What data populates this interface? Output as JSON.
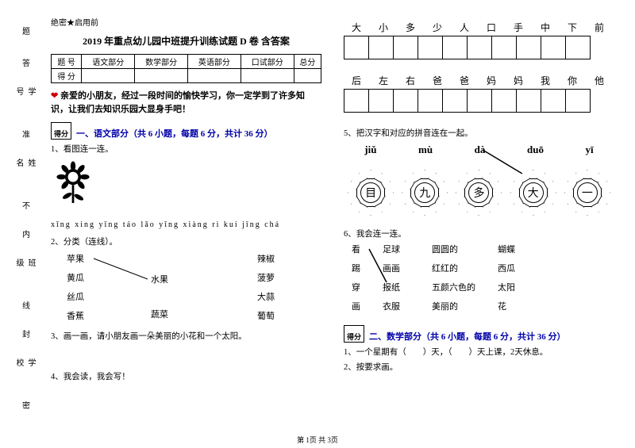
{
  "secrecy": "绝密★启用前",
  "title": "2019 年重点幼儿园中班提升训练试题 D 卷 含答案",
  "sidebar": {
    "labels": [
      "题",
      "答",
      "学号",
      "准",
      "姓名",
      "不",
      "内",
      "班级",
      "线",
      "封",
      "学校",
      "密"
    ]
  },
  "scoreTable": {
    "headers": [
      "题  号",
      "语文部分",
      "数学部分",
      "英语部分",
      "口试部分",
      "总分"
    ],
    "row2": "得  分"
  },
  "intro": "亲爱的小朋友，经过一段时间的愉快学习，你一定学到了许多知识，让我们去知识乐园大显身手吧！",
  "scoreBoxLabel": "得分",
  "section1": {
    "title": "一、语文部分（共 6 小题，每题 6 分，共计 36 分）"
  },
  "q1": "1、看图连一连。",
  "q1pinyin": "xīng xing     yīng táo     lǎo yīng     xiàng rì kuí     jǐng chá",
  "q2": "2、分类（连线）。",
  "fruits": {
    "left": [
      "苹果",
      "黄瓜",
      "丝瓜",
      "香蕉"
    ],
    "mid": [
      "水果",
      "蔬菜"
    ],
    "right": [
      "辣椒",
      "菠萝",
      "大蒜",
      "葡萄"
    ]
  },
  "q3": "3、画一画，请小朋友画一朵美丽的小花和一个太阳。",
  "q4": "4、我会读，我会写！",
  "charRow1": [
    "大",
    "小",
    "多",
    "少",
    "人",
    "口",
    "手",
    "中",
    "下",
    "前"
  ],
  "charRow2": [
    "后",
    "左",
    "右",
    "爸",
    "爸",
    "妈",
    "妈",
    "我",
    "你",
    "他"
  ],
  "q5": "5、把汉字和对应的拼音连在一起。",
  "pinyins": [
    "jiǔ",
    "mù",
    "dà",
    "duō",
    "yī"
  ],
  "flowerChars": [
    "目",
    "九",
    "多",
    "大",
    "一"
  ],
  "q6": "6、我会连一连。",
  "q6left1": [
    "看",
    "踢",
    "穿",
    "画"
  ],
  "q6left2": [
    "足球",
    "画画",
    "报纸",
    "衣服"
  ],
  "q6right1": [
    "圆圆的",
    "红红的",
    "五颜六色的",
    "美丽的"
  ],
  "q6right2": [
    "蝴蝶",
    "西瓜",
    "太阳",
    "花"
  ],
  "section2": {
    "title": "二、数学部分（共 6 小题，每题 6 分，共计 36 分）"
  },
  "q2_1": "1、一个星期有（　　）天，（　　）天上课，2天休息。",
  "q2_2": "2、按要求画。",
  "footer": "第 1页 共 3页"
}
